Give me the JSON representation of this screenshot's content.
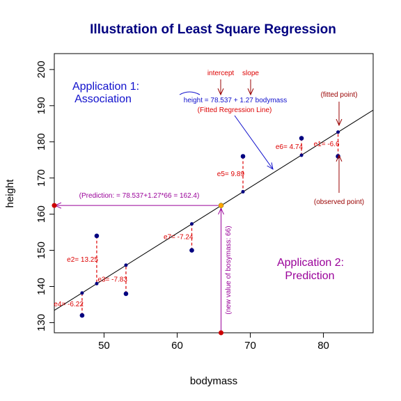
{
  "chart_data": {
    "type": "scatter",
    "title": "Illustration of Least Square Regression",
    "xlabel": "bodymass",
    "ylabel": "height",
    "xlim": [
      43.2,
      86.8
    ],
    "ylim": [
      127.2,
      204.4
    ],
    "xticks": [
      50,
      60,
      70,
      80
    ],
    "yticks": [
      130,
      140,
      150,
      160,
      170,
      180,
      190,
      200
    ],
    "grid": false,
    "regression": {
      "intercept": 78.537,
      "slope": 1.27
    },
    "points": [
      {
        "x": 47,
        "y": 132,
        "fitted": 138.2,
        "residual_label": "e4= -6.22"
      },
      {
        "x": 49,
        "y": 154,
        "fitted": 140.8,
        "residual_label": "e2= 13.25"
      },
      {
        "x": 53,
        "y": 138,
        "fitted": 145.9,
        "residual_label": "e3= -7.83"
      },
      {
        "x": 62,
        "y": 150,
        "fitted": 157.3,
        "residual_label": "e7= -7.24"
      },
      {
        "x": 69,
        "y": 176,
        "fitted": 166.2,
        "residual_label": "e5= 9.89"
      },
      {
        "x": 77,
        "y": 181,
        "fitted": 176.3,
        "residual_label": "e6= 4.74"
      },
      {
        "x": 82,
        "y": 176,
        "fitted": 182.7,
        "residual_label": "e1= -6.6"
      }
    ],
    "prediction": {
      "x": 66,
      "y": 162.4
    },
    "colors": {
      "points": "#000080",
      "residual": "#dd0000",
      "title": "#000080",
      "blue_text": "#1010cc",
      "purple": "#990099",
      "dark_red": "#990000",
      "prediction_point": "#ffa500"
    }
  },
  "annotations": {
    "app1_line1": "Application 1:",
    "app1_line2": "Association",
    "app2_line1": "Application 2:",
    "app2_line2": "Prediction",
    "intercept": "intercept",
    "slope": "slope",
    "equation": "height = 78.537 + 1.27 bodymass",
    "fitted_line": "(Fitted Regression Line)",
    "fitted_point": "(fitted point)",
    "observed_point": "(observed point)",
    "prediction_text": "(Prediction: = 78.537+1.27*66 = 162.4)",
    "new_value": "(new value of bosymass: 66)"
  }
}
